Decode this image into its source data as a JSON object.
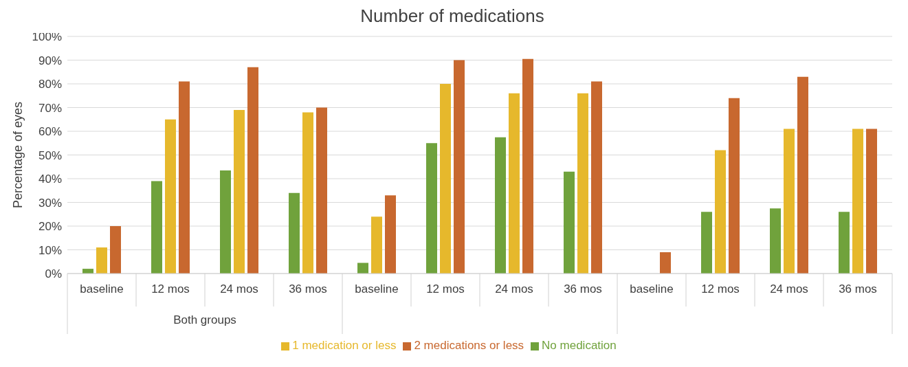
{
  "chart_data": {
    "type": "bar",
    "title": "Number of medications",
    "ylabel": "Percentage of eyes",
    "categories": [
      "baseline",
      "12 mos",
      "24 mos",
      "36 mos",
      "baseline",
      "12 mos",
      "24 mos",
      "36 mos",
      "baseline",
      "12 mos",
      "24 mos",
      "36 mos"
    ],
    "annotations": [
      "Both groups",
      null,
      null
    ],
    "series": [
      {
        "name": "No medication",
        "color": "#70a23c",
        "values": [
          2,
          39,
          43.5,
          34,
          4.5,
          55,
          57.5,
          43,
          0,
          26,
          27.5,
          26
        ]
      },
      {
        "name": "1 medication or less",
        "color": "#e6b82c",
        "values": [
          11,
          65,
          69,
          68,
          24,
          80,
          76,
          76,
          0,
          52,
          61,
          61
        ]
      },
      {
        "name": "2 medications or less",
        "color": "#c8682f",
        "values": [
          20,
          81,
          87,
          70,
          33,
          90,
          90.5,
          81,
          9,
          74,
          83,
          61
        ]
      }
    ],
    "ylim": [
      0,
      100
    ],
    "yticks": [
      {
        "value": 0,
        "label": "0%"
      },
      {
        "value": 10,
        "label": "10%"
      },
      {
        "value": 20,
        "label": "20%"
      },
      {
        "value": 30,
        "label": "30%"
      },
      {
        "value": 40,
        "label": "40%"
      },
      {
        "value": 50,
        "label": "50%"
      },
      {
        "value": 60,
        "label": "60%"
      },
      {
        "value": 70,
        "label": "70%"
      },
      {
        "value": 80,
        "label": "80%"
      },
      {
        "value": 90,
        "label": "90%"
      },
      {
        "value": 100,
        "label": "100%"
      }
    ],
    "grid": "y",
    "legend": "bottom"
  }
}
